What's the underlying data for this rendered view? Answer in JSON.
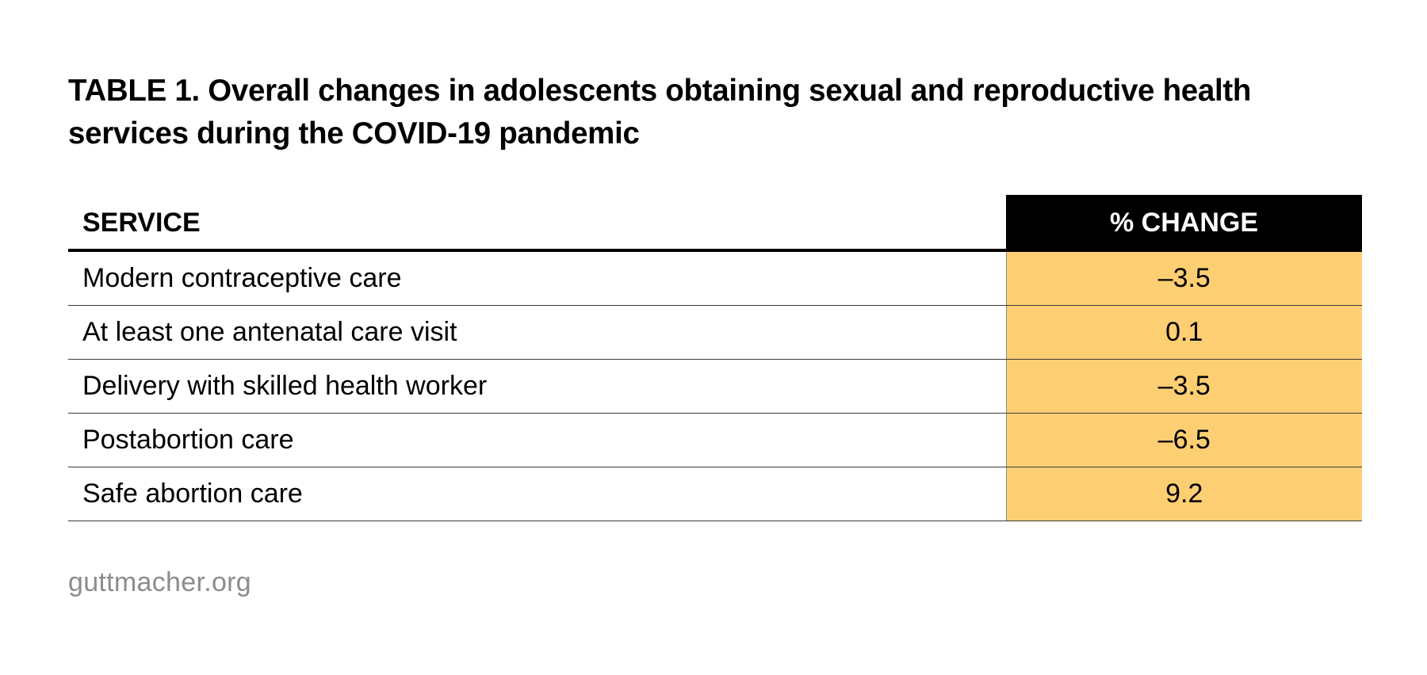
{
  "title": "TABLE 1. Overall changes in adolescents obtaining sexual and reproductive health services during the COVID-19 pandemic",
  "source": "guttmacher.org",
  "colors": {
    "header_background": "#000000",
    "header_text": "#ffffff",
    "value_column_fill": "#fecf72",
    "source_text": "#8c8c8c"
  },
  "chart_data": {
    "type": "table",
    "title": "TABLE 1. Overall changes in adolescents obtaining sexual and reproductive health services during the COVID-19 pandemic",
    "columns": [
      "SERVICE",
      "% CHANGE"
    ],
    "rows": [
      {
        "service": "Modern contraceptive care",
        "change": "–3.5"
      },
      {
        "service": "At least one antenatal care visit",
        "change": "0.1"
      },
      {
        "service": "Delivery with skilled health worker",
        "change": "–3.5"
      },
      {
        "service": "Postabortion care",
        "change": "–6.5"
      },
      {
        "service": "Safe abortion care",
        "change": "9.2"
      }
    ]
  }
}
